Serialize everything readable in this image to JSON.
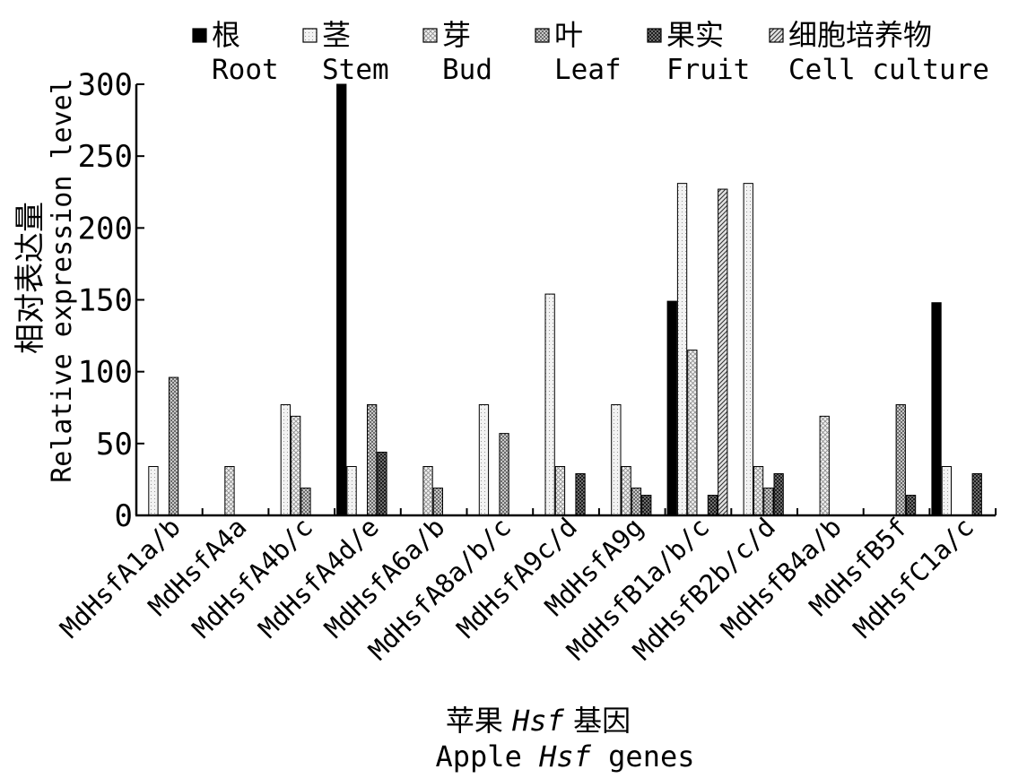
{
  "chart_data": {
    "type": "bar",
    "title": "",
    "ylabel_cn": "相对表达量",
    "ylabel_en": "Relative expression level",
    "xlabel_cn_parts": [
      "苹果 ",
      "Hsf",
      " 基因"
    ],
    "xlabel_en_parts": [
      "Apple ",
      "Hsf",
      " genes"
    ],
    "ylim": [
      0,
      300
    ],
    "yticks": [
      "0",
      "50",
      "100",
      "150",
      "200",
      "250",
      "300"
    ],
    "legend_position": "top",
    "categories": [
      "MdHsfA1a/b",
      "MdHsfA4a",
      "MdHsfA4b/c",
      "MdHsfA4d/e",
      "MdHsfA6a/b",
      "MdHsfA8a/b/c",
      "MdHsfA9c/d",
      "MdHsfA9g",
      "MdHsfB1a/b/c",
      "MdHsfB2b/c/d",
      "MdHsfB4a/b",
      "MdHsfB5f",
      "MdHsfC1a/c"
    ],
    "series": [
      {
        "name_cn": "根",
        "name_en": "Root",
        "color": "#000000",
        "values": [
          0,
          0,
          0,
          300,
          0,
          0,
          0,
          0,
          149,
          0,
          0,
          0,
          148
        ]
      },
      {
        "name_cn": "茎",
        "name_en": "Stem",
        "color": "#e0e0e0",
        "values": [
          34,
          0,
          77,
          34,
          0,
          77,
          154,
          77,
          231,
          231,
          0,
          0,
          34
        ]
      },
      {
        "name_cn": "芽",
        "name_en": "Bud",
        "color": "#d2d2d2",
        "values": [
          0,
          34,
          69,
          0,
          34,
          0,
          34,
          34,
          115,
          34,
          69,
          0,
          0
        ]
      },
      {
        "name_cn": "叶",
        "name_en": "Leaf",
        "color": "#8a8a8a",
        "values": [
          96,
          0,
          19,
          77,
          19,
          57,
          0,
          19,
          0,
          19,
          0,
          77,
          0
        ]
      },
      {
        "name_cn": "果实",
        "name_en": "Fruit",
        "color": "#404040",
        "values": [
          0,
          0,
          0,
          44,
          0,
          0,
          29,
          14,
          14,
          29,
          0,
          14,
          29
        ]
      },
      {
        "name_cn": "细胞培养物",
        "name_en": "Cell culture",
        "color": "#a8a8a8",
        "values": [
          0,
          0,
          0,
          0,
          0,
          0,
          0,
          0,
          227,
          0,
          0,
          0,
          0
        ]
      }
    ]
  }
}
